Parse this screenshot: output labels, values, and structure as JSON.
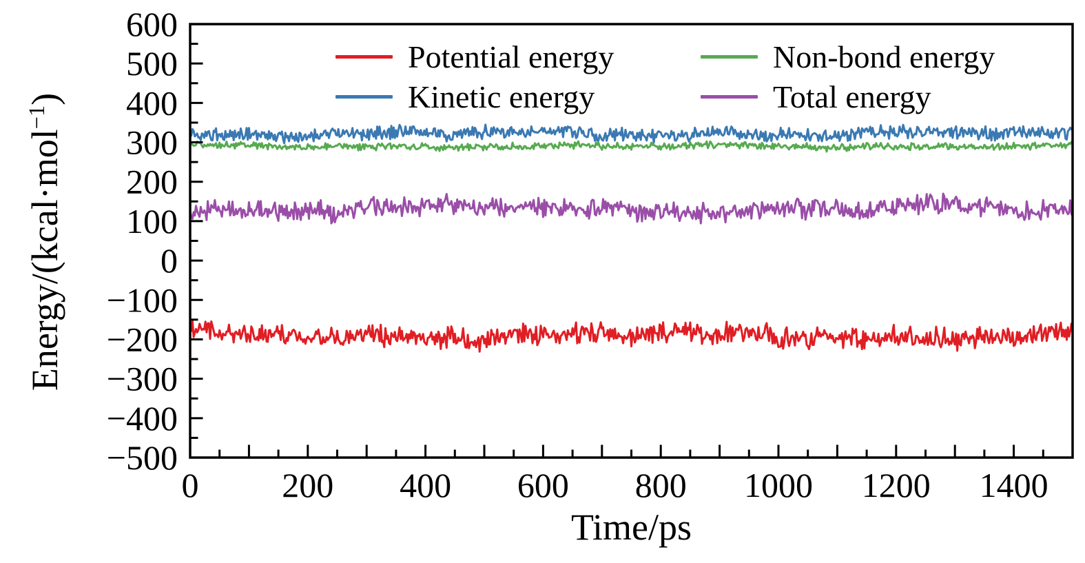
{
  "figure": {
    "background": "#ffffff",
    "xlabel": "Time/ps",
    "ylabel": "Energy/(kcal·mol⁻¹)",
    "ylabel_parts": {
      "prefix": "Energy/(kcal·mol",
      "sup": "−1",
      "suffix": ")"
    }
  },
  "chart_data": {
    "type": "line",
    "title": "",
    "xlabel": "Time/ps",
    "ylabel": "Energy/(kcal·mol⁻¹)",
    "xlim": [
      0,
      1500
    ],
    "ylim": [
      -500,
      600
    ],
    "x_major_tick_step": 100,
    "x_minor_tick_step": 50,
    "y_major_tick_step": 100,
    "y_minor_tick_step": 50,
    "grid": false,
    "axis_color": "#000000",
    "legend_position": "top-inside-two-columns",
    "legend_order_rows": [
      [
        "Potential energy",
        "Non-bond energy"
      ],
      [
        "Kinetic energy",
        "Total energy"
      ]
    ],
    "x_ticks_labeled": [
      {
        "v": 0,
        "label": "0"
      },
      {
        "v": 200,
        "label": "200"
      },
      {
        "v": 400,
        "label": "400"
      },
      {
        "v": 600,
        "label": "600"
      },
      {
        "v": 800,
        "label": "800"
      },
      {
        "v": 1000,
        "label": "1000"
      },
      {
        "v": 1200,
        "label": "1200"
      },
      {
        "v": 1400,
        "label": "1400"
      }
    ],
    "y_ticks_labeled": [
      {
        "v": 600,
        "label": "600"
      },
      {
        "v": 500,
        "label": "500"
      },
      {
        "v": 400,
        "label": "400"
      },
      {
        "v": 300,
        "label": "300"
      },
      {
        "v": 200,
        "label": "200"
      },
      {
        "v": 100,
        "label": "100"
      },
      {
        "v": 0,
        "label": "0"
      },
      {
        "v": -100,
        "label": "−100"
      },
      {
        "v": -200,
        "label": "−200"
      },
      {
        "v": -300,
        "label": "−300"
      },
      {
        "v": -400,
        "label": "−400"
      },
      {
        "v": -500,
        "label": "−500"
      }
    ],
    "x_sample_step_ps": 2,
    "series": [
      {
        "name": "Potential energy",
        "color": "#e01e24",
        "mean": -190,
        "fluctuation": 38,
        "approx_range": [
          -232,
          -148
        ],
        "seed": 11
      },
      {
        "name": "Kinetic energy",
        "color": "#3a79b2",
        "mean": 322,
        "fluctuation": 24,
        "approx_range": [
          295,
          350
        ],
        "seed": 22
      },
      {
        "name": "Non-bond energy",
        "color": "#56aa4f",
        "mean": 290,
        "fluctuation": 13,
        "approx_range": [
          275,
          306
        ],
        "seed": 33
      },
      {
        "name": "Total energy",
        "color": "#9a4ea8",
        "mean": 131,
        "fluctuation": 36,
        "approx_range": [
          85,
          175
        ],
        "seed": 44
      }
    ]
  }
}
